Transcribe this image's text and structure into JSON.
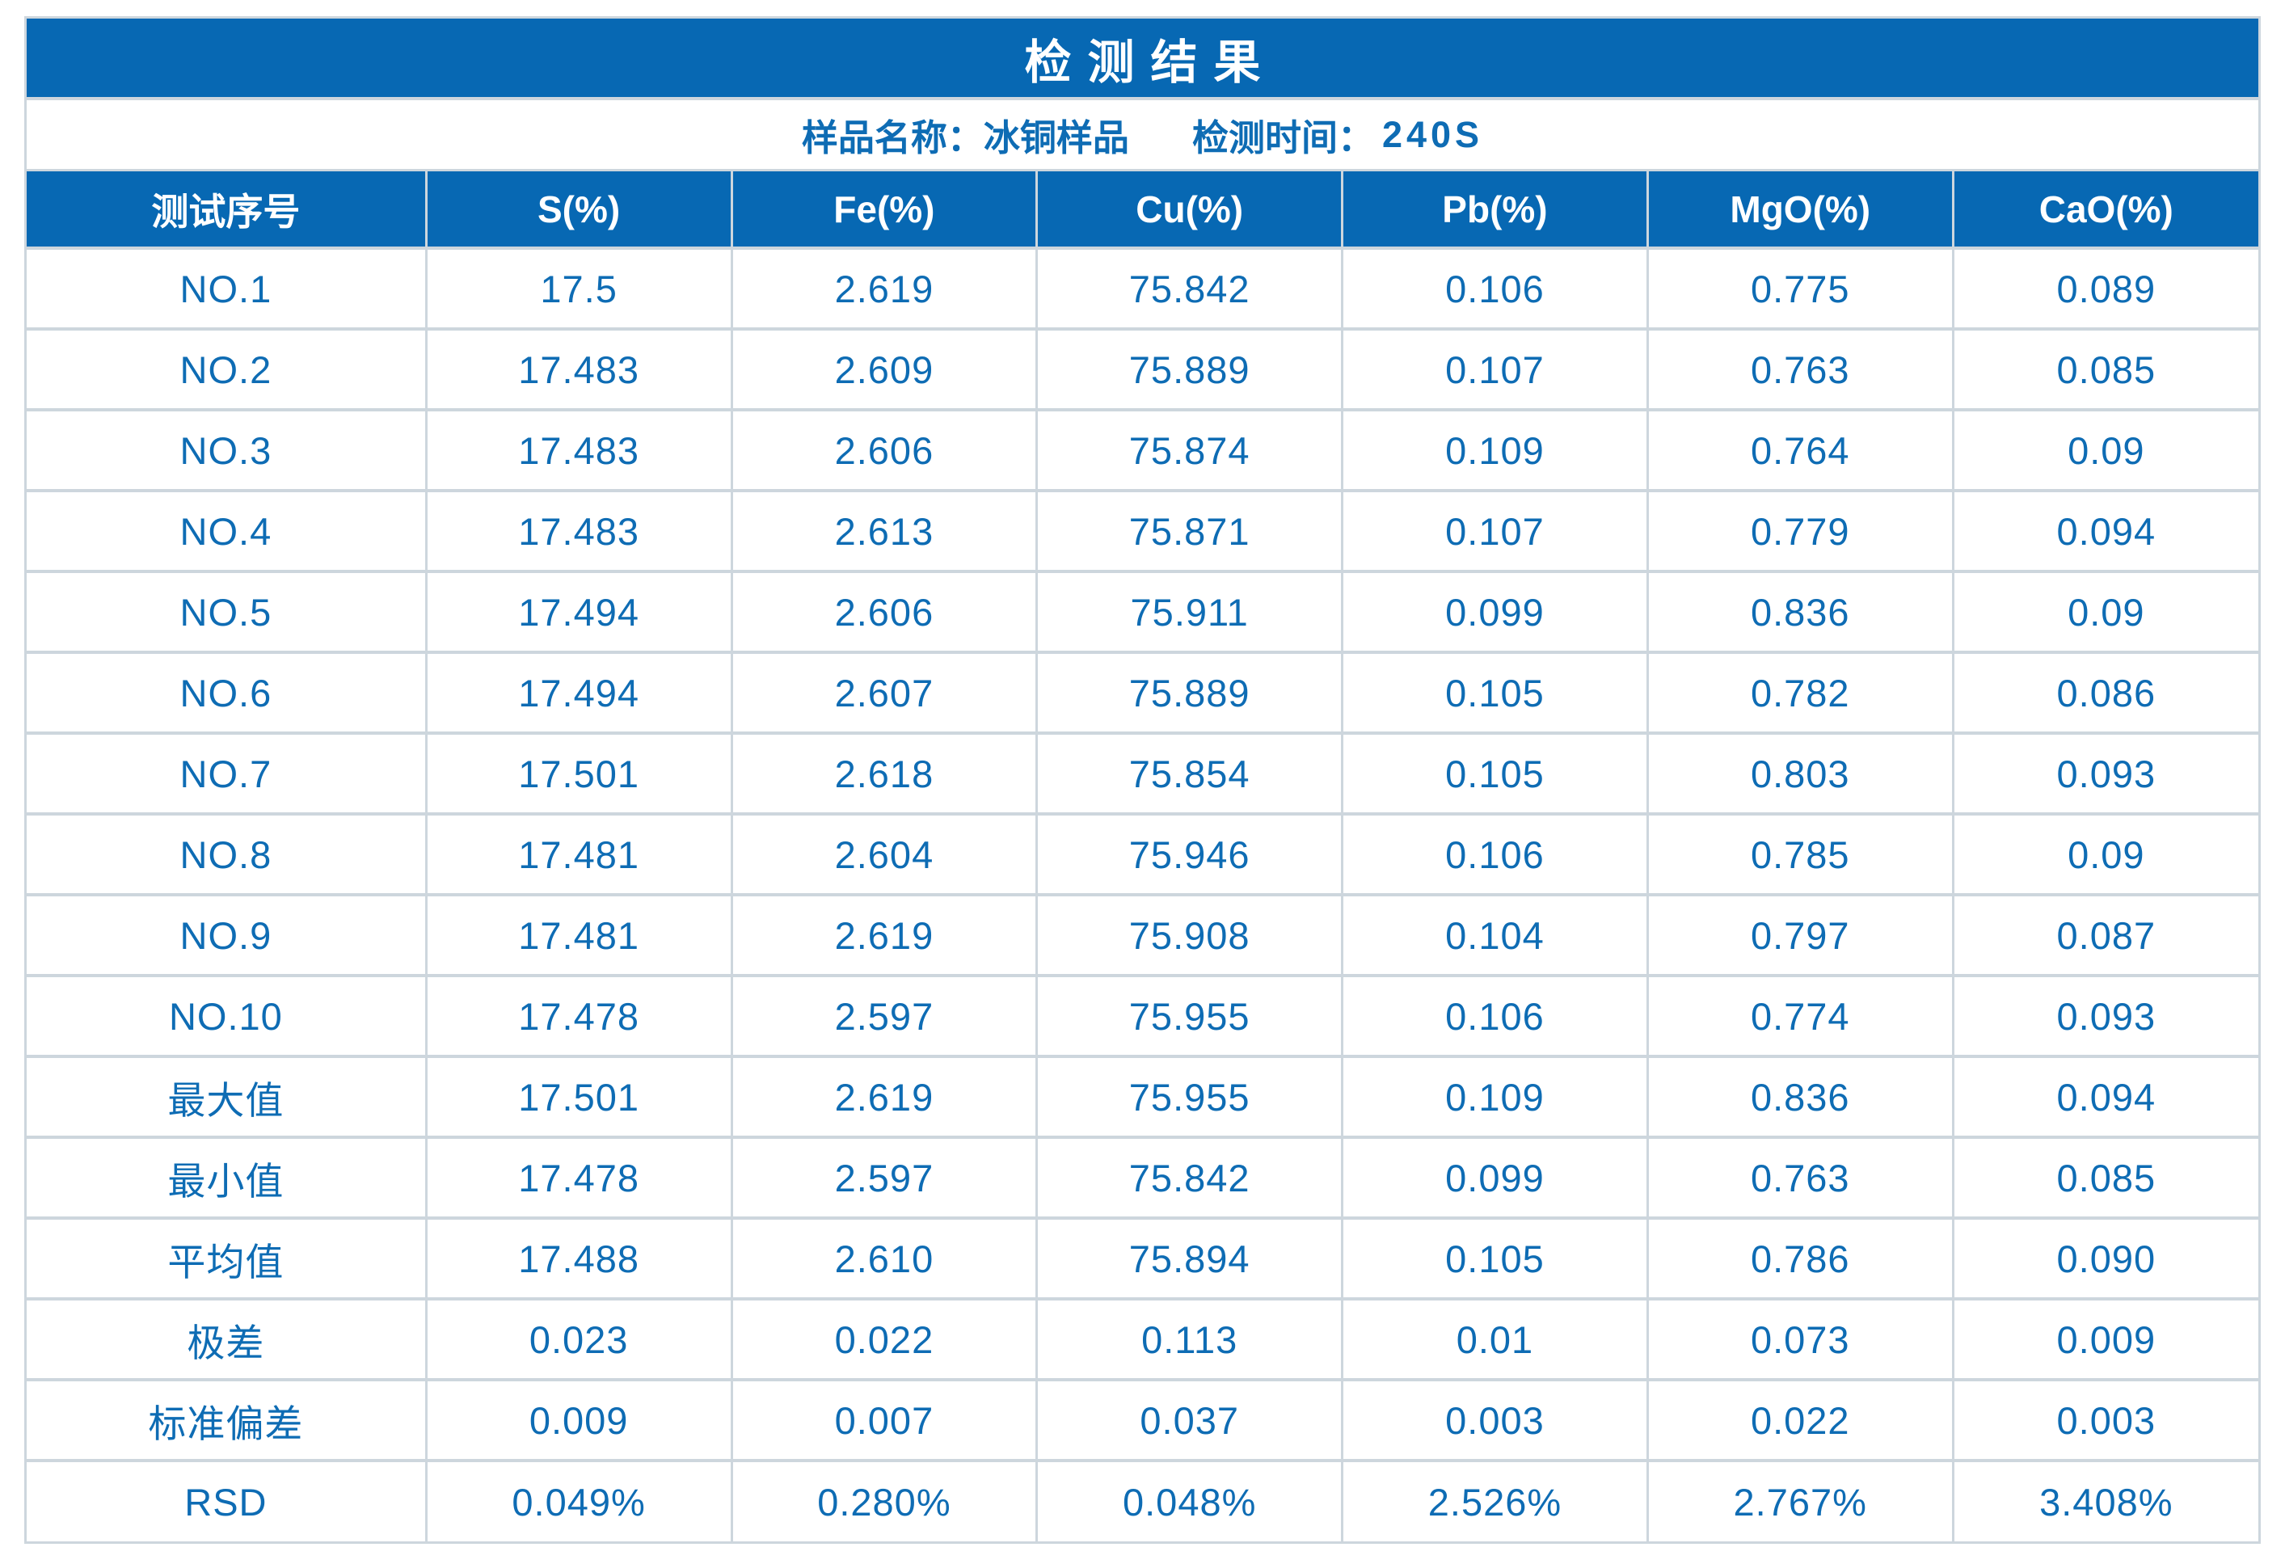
{
  "page_title": "检测结果",
  "subtitle": {
    "sample": "样品名称：冰铜样品",
    "time_label": "检测时间：",
    "time_value": "240S"
  },
  "chart_data": {
    "type": "table",
    "title": "检测结果",
    "columns": [
      "测试序号",
      "S(%)",
      "Fe(%)",
      "Cu(%)",
      "Pb(%)",
      "MgO(%)",
      "CaO(%)"
    ],
    "rows": [
      {
        "label": "NO.1",
        "values": [
          "17.5",
          "2.619",
          "75.842",
          "0.106",
          "0.775",
          "0.089"
        ]
      },
      {
        "label": "NO.2",
        "values": [
          "17.483",
          "2.609",
          "75.889",
          "0.107",
          "0.763",
          "0.085"
        ]
      },
      {
        "label": "NO.3",
        "values": [
          "17.483",
          "2.606",
          "75.874",
          "0.109",
          "0.764",
          "0.09"
        ]
      },
      {
        "label": "NO.4",
        "values": [
          "17.483",
          "2.613",
          "75.871",
          "0.107",
          "0.779",
          "0.094"
        ]
      },
      {
        "label": "NO.5",
        "values": [
          "17.494",
          "2.606",
          "75.911",
          "0.099",
          "0.836",
          "0.09"
        ]
      },
      {
        "label": "NO.6",
        "values": [
          "17.494",
          "2.607",
          "75.889",
          "0.105",
          "0.782",
          "0.086"
        ]
      },
      {
        "label": "NO.7",
        "values": [
          "17.501",
          "2.618",
          "75.854",
          "0.105",
          "0.803",
          "0.093"
        ]
      },
      {
        "label": "NO.8",
        "values": [
          "17.481",
          "2.604",
          "75.946",
          "0.106",
          "0.785",
          "0.09"
        ]
      },
      {
        "label": "NO.9",
        "values": [
          "17.481",
          "2.619",
          "75.908",
          "0.104",
          "0.797",
          "0.087"
        ]
      },
      {
        "label": "NO.10",
        "values": [
          "17.478",
          "2.597",
          "75.955",
          "0.106",
          "0.774",
          "0.093"
        ]
      },
      {
        "label": "最大值",
        "values": [
          "17.501",
          "2.619",
          "75.955",
          "0.109",
          "0.836",
          "0.094"
        ]
      },
      {
        "label": "最小值",
        "values": [
          "17.478",
          "2.597",
          "75.842",
          "0.099",
          "0.763",
          "0.085"
        ]
      },
      {
        "label": "平均值",
        "values": [
          "17.488",
          "2.610",
          "75.894",
          "0.105",
          "0.786",
          "0.090"
        ]
      },
      {
        "label": "极差",
        "values": [
          "0.023",
          "0.022",
          "0.113",
          "0.01",
          "0.073",
          "0.009"
        ]
      },
      {
        "label": "标准偏差",
        "values": [
          "0.009",
          "0.007",
          "0.037",
          "0.003",
          "0.022",
          "0.003"
        ]
      },
      {
        "label": "RSD",
        "values": [
          "0.049%",
          "0.280%",
          "0.048%",
          "2.526%",
          "2.767%",
          "3.408%"
        ]
      }
    ]
  },
  "colors": {
    "header_blue": "#0768B3",
    "text_blue": "#0E6CB4",
    "grid": "#CDD6DD",
    "header_text": "#FFFFFF",
    "page_bg": "#FFFFFF"
  }
}
